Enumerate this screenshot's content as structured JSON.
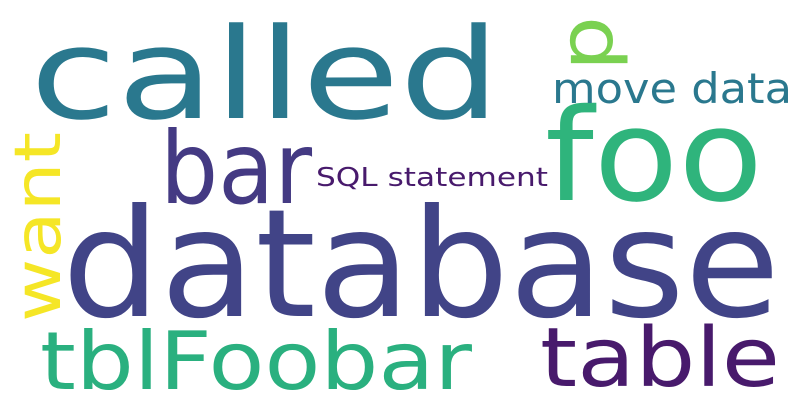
{
  "words": [
    {
      "text": "database",
      "color": "#414487"
    },
    {
      "text": "called",
      "color": "#2a788e"
    },
    {
      "text": "foo",
      "color": "#2fb47c"
    },
    {
      "text": "bar",
      "color": "#443a83"
    },
    {
      "text": "want",
      "color": "#f5e626"
    },
    {
      "text": "tblFoobar",
      "color": "#2ab07f"
    },
    {
      "text": "table",
      "color": "#481a6c"
    },
    {
      "text": "move data",
      "color": "#2a788e"
    },
    {
      "text": "p",
      "color": "#7ad151"
    },
    {
      "text": "SQL statement",
      "color": "#481a6c"
    }
  ]
}
